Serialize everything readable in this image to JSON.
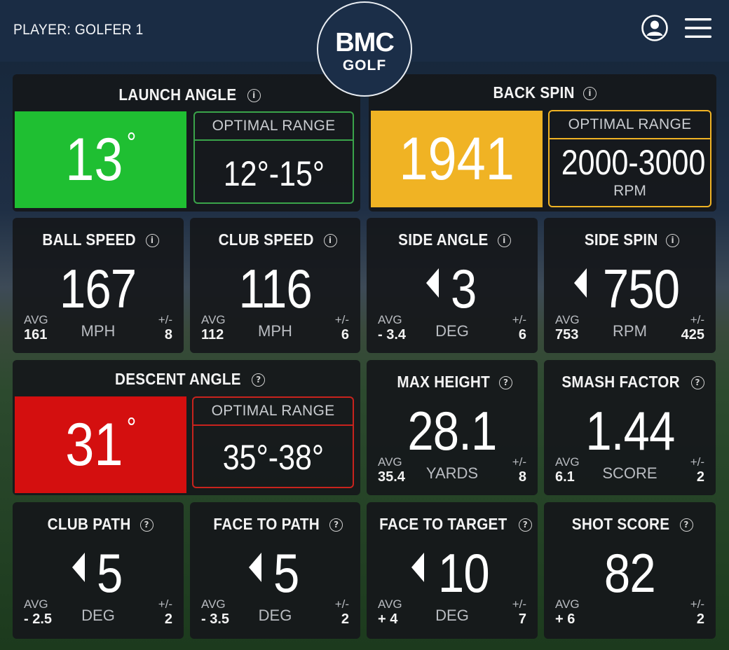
{
  "header": {
    "player_label": "PLAYER: GOLFER 1",
    "logo_main": "BMC",
    "logo_sub": "GOLF",
    "user_icon": "user-circle-icon",
    "menu_icon": "hamburger-menu-icon"
  },
  "colors": {
    "good": "#1fbf32",
    "warning": "#f0b324",
    "bad": "#d40f0f",
    "tile_bg": "#16181b",
    "header_bg": "#1a2c44"
  },
  "highlight_tiles": {
    "launch_angle": {
      "title": "LAUNCH ANGLE",
      "value": "13",
      "unit_symbol": "°",
      "status": "good",
      "range_label": "OPTIMAL RANGE",
      "range_value": "12°-15°"
    },
    "back_spin": {
      "title": "BACK SPIN",
      "value": "1941",
      "status": "warning",
      "range_label": "OPTIMAL RANGE",
      "range_value": "2000-3000",
      "range_unit": "RPM"
    },
    "descent_angle": {
      "title": "DESCENT ANGLE",
      "value": "31",
      "unit_symbol": "°",
      "status": "bad",
      "range_label": "OPTIMAL RANGE",
      "range_value": "35°-38°"
    }
  },
  "metrics": {
    "ball_speed": {
      "title": "BALL SPEED",
      "value": "167",
      "unit": "MPH",
      "avg_label": "AVG",
      "avg": "161",
      "pm_label": "+/-",
      "pm": "8"
    },
    "club_speed": {
      "title": "CLUB SPEED",
      "value": "116",
      "unit": "MPH",
      "avg_label": "AVG",
      "avg": "112",
      "pm_label": "+/-",
      "pm": "6"
    },
    "side_angle": {
      "title": "SIDE ANGLE",
      "value": "3",
      "unit": "DEG",
      "avg_label": "AVG",
      "avg": "- 3.4",
      "pm_label": "+/-",
      "pm": "6"
    },
    "side_spin": {
      "title": "SIDE SPIN",
      "value": "750",
      "unit": "RPM",
      "avg_label": "AVG",
      "avg": "753",
      "pm_label": "+/-",
      "pm": "425"
    },
    "max_height": {
      "title": "MAX HEIGHT",
      "value": "28.1",
      "unit": "YARDS",
      "avg_label": "AVG",
      "avg": "35.4",
      "pm_label": "+/-",
      "pm": "8"
    },
    "smash_factor": {
      "title": "SMASH FACTOR",
      "value": "1.44",
      "unit": "SCORE",
      "avg_label": "AVG",
      "avg": "6.1",
      "pm_label": "+/-",
      "pm": "2"
    },
    "club_path": {
      "title": "CLUB PATH",
      "value": "5",
      "unit": "DEG",
      "avg_label": "AVG",
      "avg": "- 2.5",
      "pm_label": "+/-",
      "pm": "2"
    },
    "face_to_path": {
      "title": "FACE TO PATH",
      "value": "5",
      "unit": "DEG",
      "avg_label": "AVG",
      "avg": "- 3.5",
      "pm_label": "+/-",
      "pm": "2"
    },
    "face_to_target": {
      "title": "FACE TO TARGET",
      "value": "10",
      "unit": "DEG",
      "avg_label": "AVG",
      "avg": "+ 4",
      "pm_label": "+/-",
      "pm": "7"
    },
    "shot_score": {
      "title": "SHOT SCORE",
      "value": "82",
      "avg_label": "AVG",
      "avg": "+ 6",
      "pm_label": "+/-",
      "pm": "2"
    }
  },
  "info_icons": {
    "info": "info-icon",
    "help": "help-icon"
  }
}
